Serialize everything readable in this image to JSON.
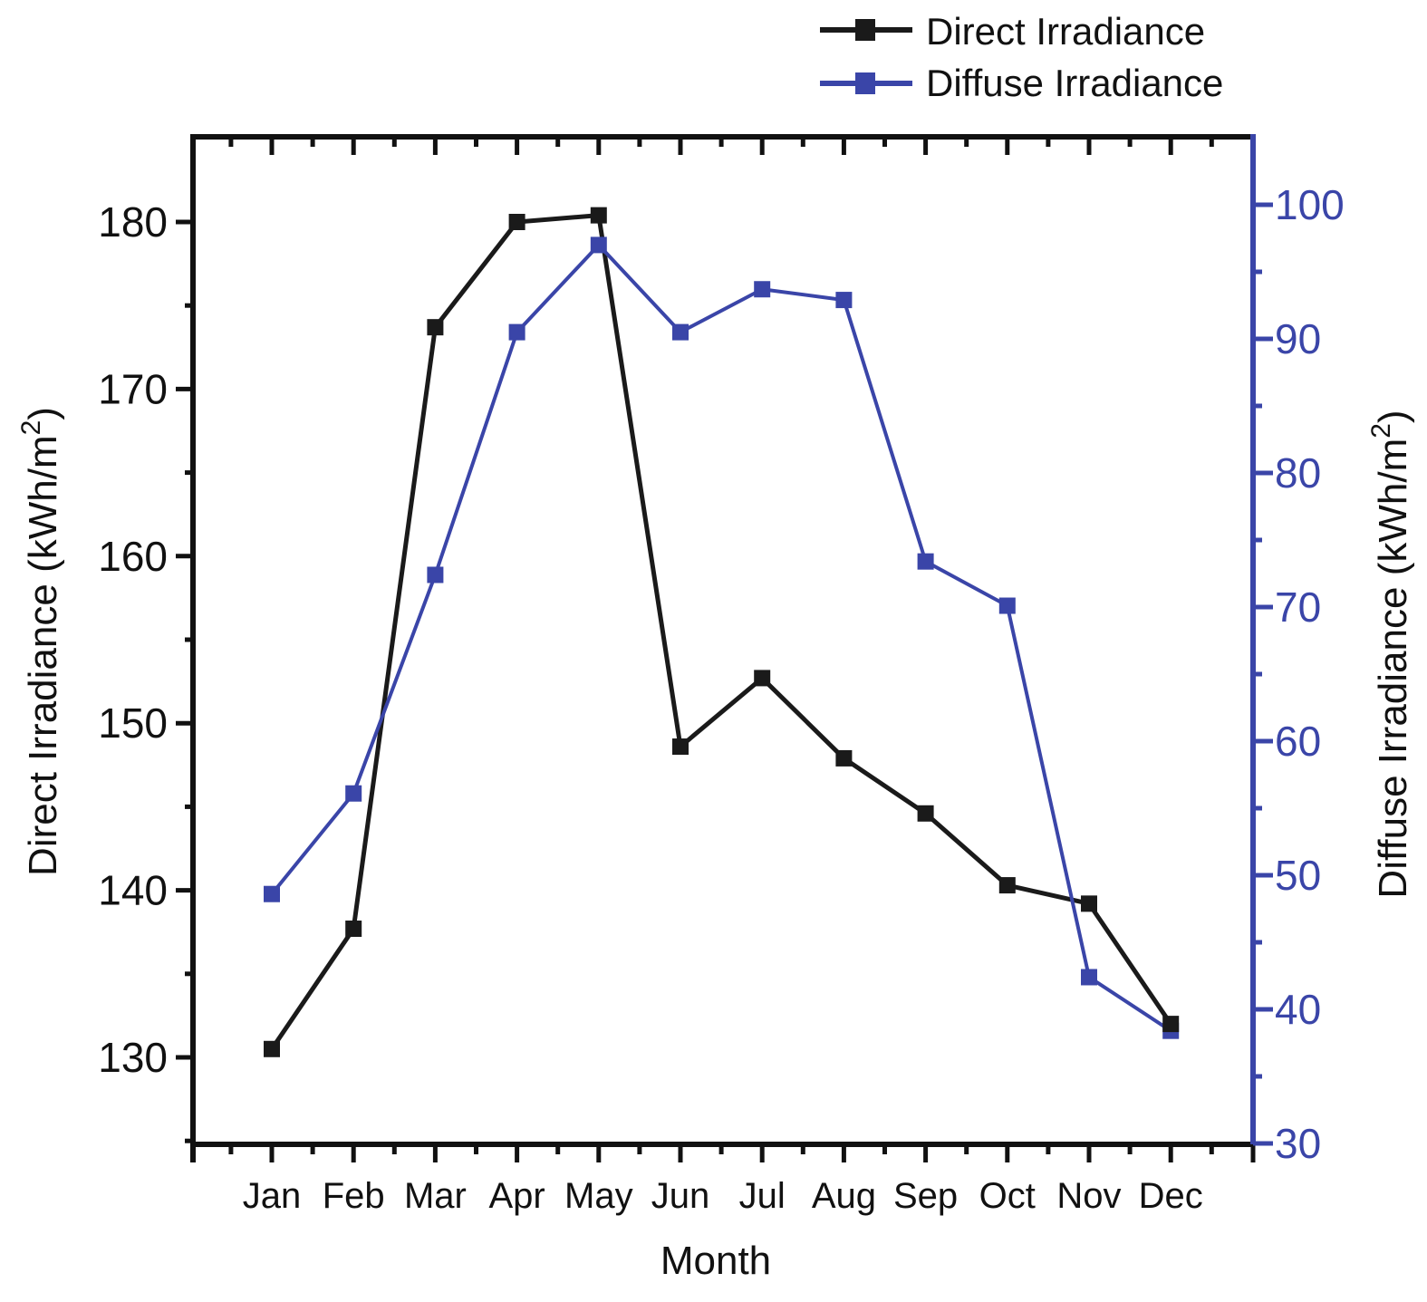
{
  "chart_data": {
    "type": "line",
    "title": "",
    "xlabel": "Month",
    "categories": [
      "Jan",
      "Feb",
      "Mar",
      "Apr",
      "May",
      "Jun",
      "Jul",
      "Aug",
      "Sep",
      "Oct",
      "Nov",
      "Dec"
    ],
    "y_left": {
      "label": "Direct Irradiance (kWh/m",
      "label_sup": "2",
      "label_close": ")",
      "range": [
        125,
        185
      ],
      "ticks": [
        130,
        140,
        150,
        160,
        170,
        180
      ],
      "tick_labels": [
        "130",
        "140",
        "150",
        "160",
        "170",
        "180"
      ]
    },
    "y_right": {
      "label": "Diffuse Irradiance (kWh/m",
      "label_sup": "2",
      "label_close": ")",
      "range": [
        30,
        105
      ],
      "ticks": [
        30,
        40,
        50,
        60,
        70,
        80,
        90,
        100
      ],
      "tick_labels": [
        "30",
        "40",
        "50",
        "60",
        "70",
        "80",
        "90",
        "100"
      ]
    },
    "series": [
      {
        "name": "Direct Irradiance",
        "axis": "left",
        "color": "#1a1a1a",
        "marker": "square",
        "values": [
          130.5,
          137.7,
          173.7,
          180.0,
          180.4,
          148.6,
          152.7,
          147.9,
          144.6,
          140.3,
          139.2,
          132.0
        ]
      },
      {
        "name": "Diffuse Irradiance",
        "axis": "right",
        "color": "#3a45a8",
        "marker": "square",
        "values": [
          48.6,
          56.1,
          72.4,
          90.5,
          97.0,
          90.5,
          93.7,
          92.9,
          73.4,
          70.1,
          42.4,
          38.4
        ]
      }
    ],
    "legend": {
      "position": "top-right",
      "entries": [
        "Direct Irradiance",
        "Diffuse Irradiance"
      ]
    },
    "grid": false,
    "axis_colors": {
      "left": "#111111",
      "right": "#3a45a8"
    }
  }
}
